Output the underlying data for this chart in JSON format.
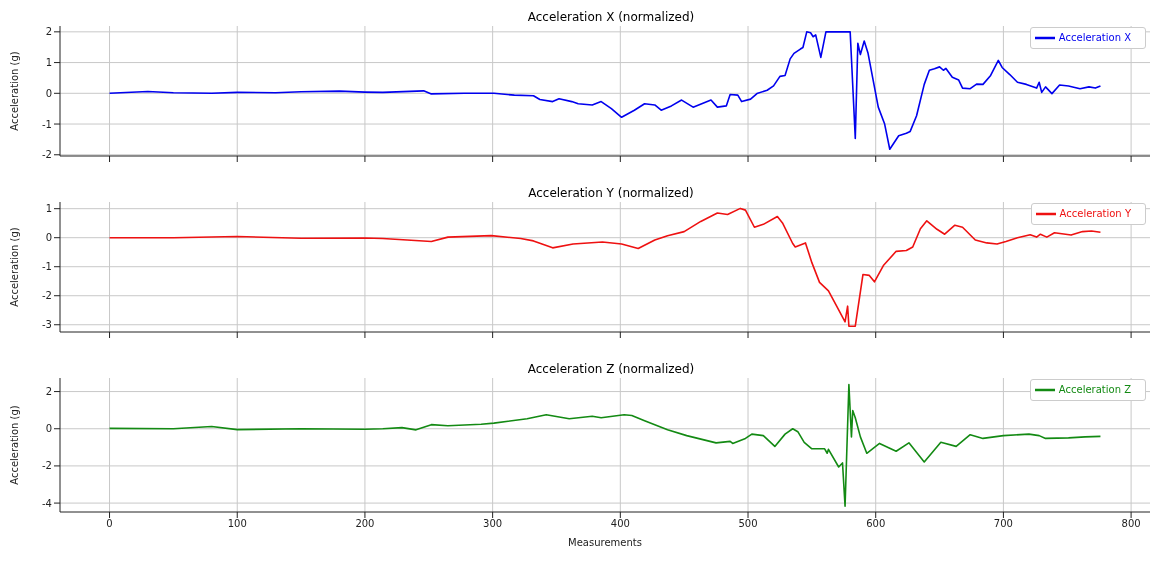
{
  "chart_data": [
    {
      "type": "line",
      "title": "Acceleration X (normalized)",
      "ylabel": "Acceleration (g)",
      "xlim": [
        -38.8,
        814.8
      ],
      "xticks": [
        0,
        100,
        200,
        300,
        400,
        500,
        600,
        700,
        800
      ],
      "ylim": [
        -2.04,
        2.19
      ],
      "yticks": [
        -2,
        -1,
        0,
        1,
        2
      ],
      "grid": true,
      "legend": "top right",
      "tick_labels": "y",
      "marker": "none",
      "line_style": "solid",
      "series": [
        {
          "name": "Acceleration X",
          "color": "#0000ee",
          "x": [
            0,
            30,
            50,
            80,
            100,
            130,
            150,
            180,
            200,
            214,
            246,
            252,
            278,
            301,
            317,
            332,
            337,
            347,
            352,
            362,
            367,
            378,
            385,
            393,
            401,
            411,
            419,
            427,
            432,
            440,
            448,
            457,
            471,
            476,
            483,
            486,
            492,
            495,
            502,
            507,
            515,
            520,
            525,
            529,
            533,
            536,
            541,
            543,
            546,
            549,
            551,
            553,
            557,
            561,
            580,
            584,
            586,
            588,
            591,
            594,
            602,
            607,
            611,
            618,
            624,
            627,
            632,
            638,
            642,
            646,
            650,
            653,
            655,
            660,
            665,
            668,
            674,
            679,
            684,
            690,
            696,
            699,
            705,
            711,
            718,
            726,
            728,
            730,
            733,
            738,
            744,
            751,
            760,
            767,
            772,
            776
          ],
          "values": [
            0,
            0.06,
            0.02,
            0,
            0.03,
            0.02,
            0.05,
            0.07,
            0.04,
            0.03,
            0.08,
            -0.02,
            0,
            0,
            -0.06,
            -0.08,
            -0.2,
            -0.27,
            -0.18,
            -0.27,
            -0.34,
            -0.38,
            -0.27,
            -0.5,
            -0.78,
            -0.55,
            -0.34,
            -0.38,
            -0.55,
            -0.41,
            -0.22,
            -0.45,
            -0.22,
            -0.45,
            -0.41,
            -0.04,
            -0.06,
            -0.27,
            -0.19,
            -0.01,
            0.1,
            0.24,
            0.55,
            0.58,
            1.12,
            1.3,
            1.44,
            1.49,
            2,
            1.97,
            1.84,
            1.9,
            1.17,
            2,
            2,
            -1.47,
            1.63,
            1.26,
            1.7,
            1.3,
            -0.45,
            -1,
            -1.82,
            -1.38,
            -1.3,
            -1.24,
            -0.73,
            0.29,
            0.75,
            0.8,
            0.86,
            0.75,
            0.81,
            0.52,
            0.43,
            0.17,
            0.15,
            0.3,
            0.29,
            0.58,
            1.07,
            0.84,
            0.61,
            0.36,
            0.29,
            0.17,
            0.36,
            0.03,
            0.21,
            -0.01,
            0.27,
            0.24,
            0.15,
            0.21,
            0.17,
            0.24
          ]
        }
      ]
    },
    {
      "type": "line",
      "title": "Acceleration Y (normalized)",
      "ylabel": "Acceleration (g)",
      "xlim": [
        -38.8,
        814.8
      ],
      "xticks": [
        0,
        100,
        200,
        300,
        400,
        500,
        600,
        700,
        800
      ],
      "ylim": [
        -3.25,
        1.23
      ],
      "yticks": [
        -3,
        -2,
        -1,
        0,
        1
      ],
      "grid": true,
      "legend": "top right",
      "tick_labels": "y",
      "marker": "none",
      "line_style": "solid",
      "series": [
        {
          "name": "Acceleration Y",
          "color": "#ee1111",
          "x": [
            0,
            50,
            100,
            150,
            200,
            214,
            252,
            265,
            299,
            322,
            332,
            347,
            363,
            386,
            401,
            414,
            427,
            437,
            450,
            463,
            476,
            484,
            494,
            498,
            505,
            512,
            523,
            527,
            535,
            537,
            545,
            550,
            556,
            563,
            569,
            576,
            578,
            579,
            584,
            590,
            595,
            599,
            606,
            616,
            624,
            629,
            635,
            640,
            648,
            654,
            662,
            668,
            678,
            687,
            695,
            702,
            711,
            721,
            726,
            729,
            734,
            740,
            753,
            762,
            769,
            776
          ],
          "values": [
            0,
            0,
            0.04,
            -0.02,
            -0.01,
            -0.03,
            -0.13,
            0.02,
            0.07,
            -0.03,
            -0.11,
            -0.35,
            -0.22,
            -0.15,
            -0.22,
            -0.37,
            -0.08,
            0.07,
            0.21,
            0.56,
            0.85,
            0.8,
            1.01,
            0.95,
            0.36,
            0.46,
            0.73,
            0.51,
            -0.2,
            -0.32,
            -0.18,
            -0.86,
            -1.54,
            -1.83,
            -2.32,
            -2.9,
            -2.36,
            -3.05,
            -3.05,
            -1.27,
            -1.3,
            -1.52,
            -0.96,
            -0.47,
            -0.44,
            -0.32,
            0.31,
            0.58,
            0.29,
            0.12,
            0.43,
            0.36,
            -0.08,
            -0.18,
            -0.22,
            -0.13,
            0,
            0.1,
            0.02,
            0.12,
            0.02,
            0.17,
            0.09,
            0.21,
            0.23,
            0.19
          ]
        }
      ]
    },
    {
      "type": "line",
      "title": "Acceleration Z (normalized)",
      "xlabel": "Measurements",
      "ylabel": "Acceleration (g)",
      "xlim": [
        -38.8,
        814.8
      ],
      "xticks": [
        0,
        100,
        200,
        300,
        400,
        500,
        600,
        700,
        800
      ],
      "ylim": [
        -4.48,
        2.73
      ],
      "yticks": [
        -4,
        -2,
        0,
        2
      ],
      "grid": true,
      "legend": "top right",
      "marker": "none",
      "line_style": "solid",
      "series": [
        {
          "name": "Acceleration Z",
          "color": "#138a13",
          "x": [
            0,
            50,
            80,
            100,
            150,
            200,
            214,
            229,
            240,
            252,
            265,
            291,
            301,
            327,
            342,
            360,
            378,
            385,
            403,
            409,
            419,
            437,
            452,
            475,
            486,
            488,
            498,
            503,
            512,
            521,
            529,
            535,
            539,
            544,
            550,
            560,
            562,
            563,
            571,
            574,
            576,
            579,
            581,
            582,
            584,
            588,
            593,
            603,
            616,
            626,
            638,
            651,
            663,
            674,
            684,
            700,
            720,
            728,
            733,
            751,
            764,
            776
          ],
          "values": [
            0.02,
            0,
            0.12,
            -0.05,
            0,
            -0.03,
            0,
            0.06,
            -0.06,
            0.22,
            0.16,
            0.24,
            0.3,
            0.54,
            0.75,
            0.54,
            0.67,
            0.59,
            0.75,
            0.71,
            0.43,
            -0.05,
            -0.37,
            -0.76,
            -0.68,
            -0.79,
            -0.52,
            -0.29,
            -0.37,
            -0.95,
            -0.29,
            0,
            -0.16,
            -0.73,
            -1.08,
            -1.08,
            -1.32,
            -1.11,
            -2.06,
            -1.84,
            -4.17,
            2.38,
            -0.44,
            0.98,
            0.59,
            -0.44,
            -1.32,
            -0.79,
            -1.21,
            -0.76,
            -1.79,
            -0.73,
            -0.95,
            -0.32,
            -0.52,
            -0.37,
            -0.29,
            -0.37,
            -0.52,
            -0.49,
            -0.44,
            -0.41
          ]
        }
      ]
    }
  ]
}
